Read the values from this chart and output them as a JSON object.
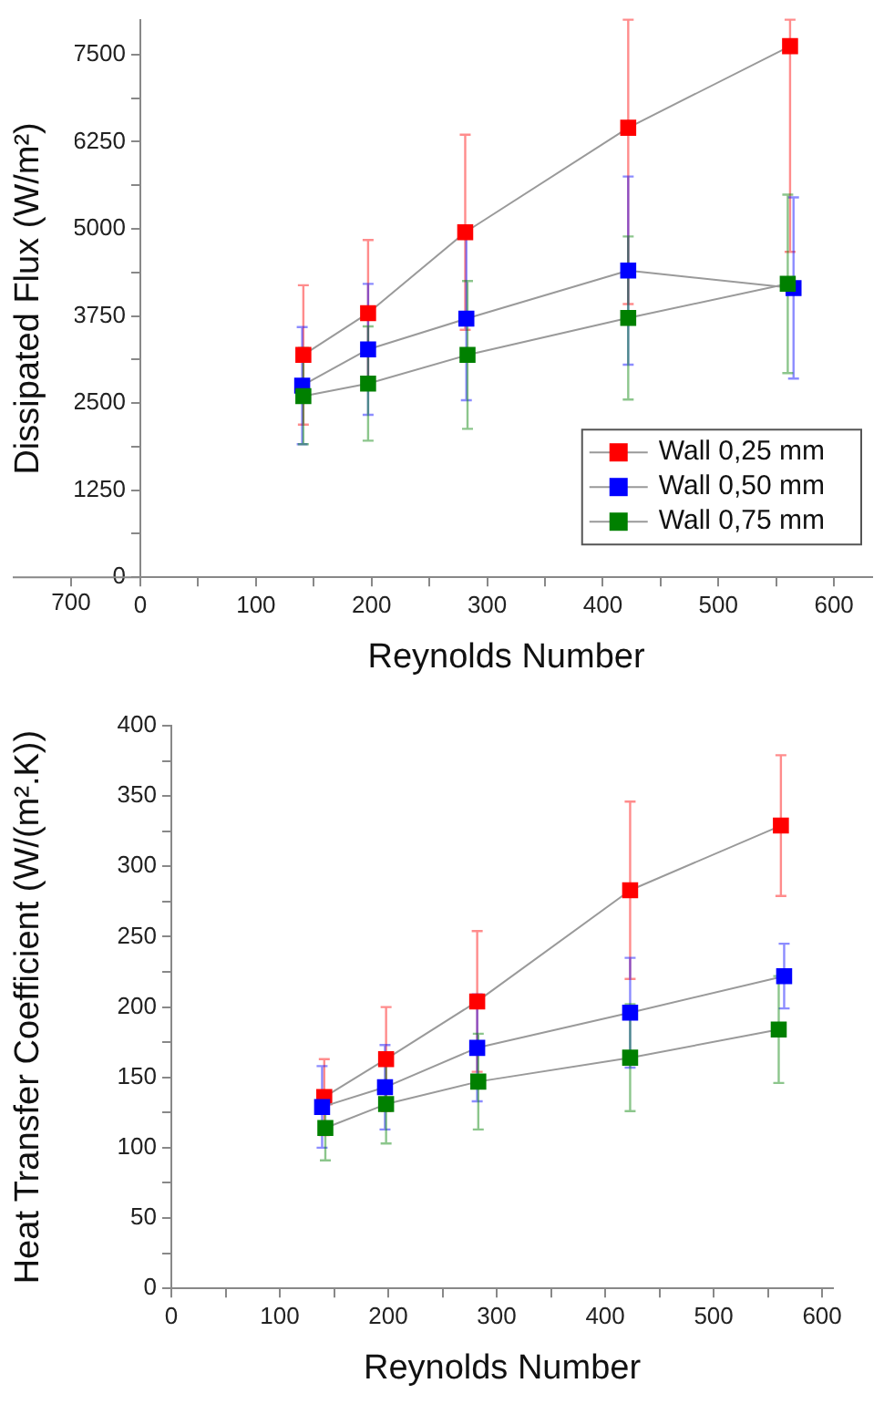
{
  "chart_data": [
    {
      "type": "line",
      "xlabel": "Reynolds Number",
      "ylabel": "Dissipated Flux (W/m²)",
      "marker": "square",
      "grid": false,
      "legend": "bottom right",
      "annotations": [
        "700"
      ],
      "xlim": [
        0,
        633
      ],
      "ylim": [
        0,
        8000
      ],
      "xticks": [
        0,
        {
          "value": 50,
          "label": null
        },
        100,
        {
          "value": 150,
          "label": null
        },
        200,
        {
          "value": 250,
          "label": null
        },
        300,
        {
          "value": 350,
          "label": null
        },
        400,
        {
          "value": 450,
          "label": null
        },
        500,
        {
          "value": 550,
          "label": null
        },
        600
      ],
      "yticks": [
        0,
        {
          "value": 625,
          "label": null
        },
        1250,
        {
          "value": 1875,
          "label": null
        },
        2500,
        {
          "value": 3125,
          "label": null
        },
        3750,
        {
          "value": 4375,
          "label": null
        },
        5000,
        {
          "value": 5625,
          "label": null
        },
        6250,
        {
          "value": 6875,
          "label": null
        },
        7500
      ],
      "series": [
        {
          "name": "Wall 0,25 mm",
          "color": "#ff0000",
          "x": [
            141,
            197,
            281,
            422,
            562
          ],
          "values": [
            3190,
            3790,
            4950,
            6450,
            7620
          ],
          "errors": [
            1000,
            1050,
            1400,
            [
              3920,
              8000
            ],
            [
              4670,
              8000
            ]
          ]
        },
        {
          "name": "Wall 0,50 mm",
          "color": "#0000ff",
          "x": [
            140,
            197,
            282,
            422,
            565
          ],
          "values": [
            2750,
            3270,
            3710,
            4400,
            4150
          ],
          "errors": [
            840,
            940,
            1170,
            1350,
            1300
          ]
        },
        {
          "name": "Wall 0,75 mm",
          "color": "#008000",
          "x": [
            141,
            197,
            283,
            422,
            560
          ],
          "values": [
            2600,
            2780,
            3190,
            3720,
            4210
          ],
          "errors": [
            690,
            820,
            1060,
            1170,
            1280
          ]
        }
      ]
    },
    {
      "type": "line",
      "xlabel": "Reynolds Number",
      "ylabel": "Heat Transfer Coefficient (W/(m².K))",
      "marker": "square",
      "grid": false,
      "xlim": [
        0,
        610
      ],
      "ylim": [
        0,
        400
      ],
      "xticks": [
        0,
        {
          "value": 50,
          "label": null
        },
        100,
        {
          "value": 150,
          "label": null
        },
        200,
        {
          "value": 250,
          "label": null
        },
        300,
        {
          "value": 350,
          "label": null
        },
        400,
        {
          "value": 450,
          "label": null
        },
        500,
        {
          "value": 550,
          "label": null
        },
        600
      ],
      "yticks": [
        0,
        {
          "value": 25,
          "label": null
        },
        50,
        {
          "value": 75,
          "label": null
        },
        100,
        {
          "value": 125,
          "label": null
        },
        150,
        {
          "value": 175,
          "label": null
        },
        200,
        {
          "value": 225,
          "label": null
        },
        250,
        {
          "value": 275,
          "label": null
        },
        300,
        {
          "value": 325,
          "label": null
        },
        350,
        {
          "value": 375,
          "label": null
        },
        400
      ],
      "series": [
        {
          "color": "#ff0000",
          "x": [
            141,
            198,
            282,
            423,
            562
          ],
          "values": [
            136,
            163,
            204,
            283,
            329
          ],
          "errors": [
            27,
            37,
            50,
            63,
            50
          ]
        },
        {
          "color": "#0000ff",
          "x": [
            139,
            197,
            282,
            423,
            565
          ],
          "values": [
            129,
            143,
            171,
            196,
            222
          ],
          "errors": [
            29,
            30,
            38,
            39,
            23
          ]
        },
        {
          "color": "#008000",
          "x": [
            142,
            198,
            283,
            423,
            560
          ],
          "values": [
            114,
            131,
            147,
            164,
            184
          ],
          "errors": [
            23,
            28,
            34,
            38,
            38
          ]
        }
      ]
    }
  ]
}
